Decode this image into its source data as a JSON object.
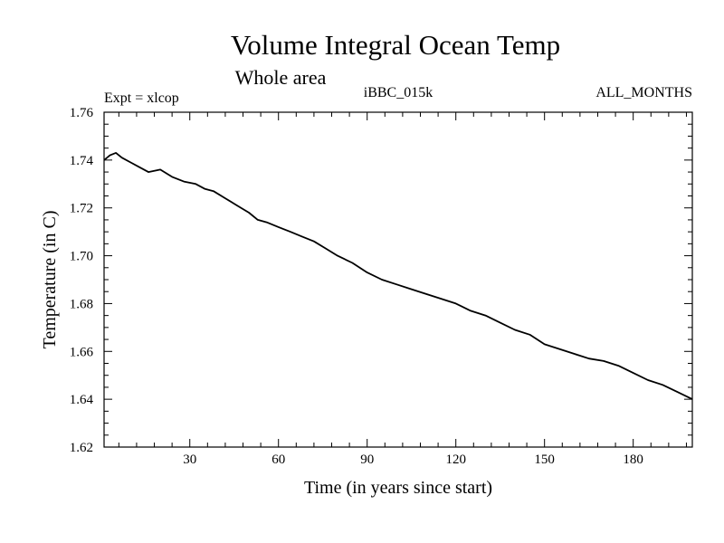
{
  "chart_data": {
    "type": "line",
    "title": "Volume Integral Ocean Temp",
    "subtitle": "Whole area",
    "experiment_label": "Expt = xlcop",
    "run_label": "iBBC_015k",
    "period_label": "ALL_MONTHS",
    "xlabel": "Time (in years since start)",
    "ylabel": "Temperature (in C)",
    "xlim": [
      1,
      200
    ],
    "ylim": [
      1.62,
      1.76
    ],
    "x_ticks": [
      30,
      60,
      90,
      120,
      150,
      180
    ],
    "x_tick_labels": [
      "30",
      "60",
      "90",
      "120",
      "150",
      "180"
    ],
    "y_ticks": [
      1.62,
      1.64,
      1.66,
      1.68,
      1.7,
      1.72,
      1.74,
      1.76
    ],
    "y_tick_labels": [
      "1.62",
      "1.64",
      "1.66",
      "1.68",
      "1.70",
      "1.72",
      "1.74",
      "1.76"
    ],
    "series": [
      {
        "name": "Volume Integral Ocean Temp",
        "x": [
          1,
          3,
          5,
          7,
          10,
          13,
          16,
          20,
          24,
          28,
          32,
          35,
          38,
          42,
          46,
          50,
          53,
          56,
          60,
          64,
          68,
          72,
          76,
          80,
          85,
          90,
          95,
          100,
          105,
          110,
          115,
          120,
          125,
          130,
          135,
          140,
          145,
          150,
          155,
          160,
          165,
          170,
          175,
          180,
          185,
          190,
          195,
          200
        ],
        "values": [
          1.74,
          1.742,
          1.743,
          1.741,
          1.739,
          1.737,
          1.735,
          1.736,
          1.733,
          1.731,
          1.73,
          1.728,
          1.727,
          1.724,
          1.721,
          1.718,
          1.715,
          1.714,
          1.712,
          1.71,
          1.708,
          1.706,
          1.703,
          1.7,
          1.697,
          1.693,
          1.69,
          1.688,
          1.686,
          1.684,
          1.682,
          1.68,
          1.677,
          1.675,
          1.672,
          1.669,
          1.667,
          1.663,
          1.661,
          1.659,
          1.657,
          1.656,
          1.654,
          1.651,
          1.648,
          1.646,
          1.643,
          1.64
        ]
      }
    ]
  }
}
